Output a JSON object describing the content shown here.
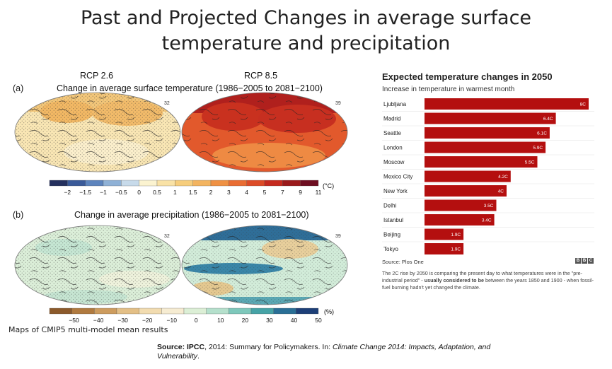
{
  "slide": {
    "title_line1": "Past and Projected Changes in average surface",
    "title_line2": "temperature and precipitation",
    "maps_caption": "Maps of CMIP5 multi-model mean results",
    "source": {
      "label": "Source:",
      "org": "IPCC",
      "text1": ", 2014: Summary for Policymakers. In: ",
      "book": "Climate Change 2014: Impacts, Adaptation, and",
      "book2": "Vulnerability",
      "end": "."
    }
  },
  "ipcc_figure": {
    "scenario_left": "RCP 2.6",
    "scenario_right": "RCP 8.5",
    "panel_a": {
      "label": "(a)",
      "title": "Change in average surface temperature (1986−2005 to 2081−2100)",
      "left_model_count": "32",
      "right_model_count": "39",
      "colorbar_ticks": [
        "−2",
        "−1.5",
        "−1",
        "−0.5",
        "0",
        "0.5",
        "1",
        "1.5",
        "2",
        "3",
        "4",
        "5",
        "7",
        "9",
        "11"
      ],
      "colorbar_unit": "(°C)",
      "colorbar_colors": [
        "#24305e",
        "#3a5a99",
        "#5d84bd",
        "#8fb1d6",
        "#c7daea",
        "#fbf3d0",
        "#f9e2a6",
        "#f6cd7c",
        "#f3b460",
        "#ef9144",
        "#e96d33",
        "#dc4b27",
        "#c52a1f",
        "#9a1a1b",
        "#6e0e21"
      ]
    },
    "panel_b": {
      "label": "(b)",
      "title": "Change in average precipitation (1986−2005 to 2081−2100)",
      "left_model_count": "32",
      "right_model_count": "39",
      "colorbar_ticks": [
        "−50",
        "−40",
        "−30",
        "−20",
        "−10",
        "0",
        "10",
        "20",
        "30",
        "40",
        "50"
      ],
      "colorbar_unit": "(%)",
      "colorbar_colors": [
        "#8c5a2b",
        "#b07a3f",
        "#cd9c5e",
        "#e3bf86",
        "#f2dcb0",
        "#f6ecd2",
        "#dcefd6",
        "#b5e0cc",
        "#7ec8bb",
        "#46a3a6",
        "#2a6f96",
        "#1d3f78"
      ]
    }
  },
  "chart_data": {
    "type": "bar",
    "orientation": "horizontal",
    "title": "Expected temperature changes in 2050",
    "subtitle": "Increase in temperature in warmest month",
    "categories": [
      "Ljubljana",
      "Madrid",
      "Seattle",
      "London",
      "Moscow",
      "Mexico City",
      "New York",
      "Delhi",
      "Istanbul",
      "Beijing",
      "Tokyo"
    ],
    "values": [
      8,
      6.4,
      6.1,
      5.9,
      5.5,
      4.2,
      4,
      3.5,
      3.4,
      1.9,
      1.9
    ],
    "value_labels": [
      "8C",
      "6.4C",
      "6.1C",
      "5.9C",
      "5.5C",
      "4.2C",
      "4C",
      "3.5C",
      "3.4C",
      "1.9C",
      "1.9C"
    ],
    "xlim": [
      0,
      8
    ],
    "bar_color": "#b40f0f",
    "source": "Source: Plos One",
    "logo": [
      "B",
      "B",
      "C"
    ],
    "footnote_a": "The 2C rise by 2050 is comparing the present day to what temperatures were in the \"pre-industrial period\" - ",
    "footnote_b": "usually considered to be",
    "footnote_c": " between the years 1850 and 1900 - when fossil-fuel burning hadn't yet changed the climate."
  }
}
